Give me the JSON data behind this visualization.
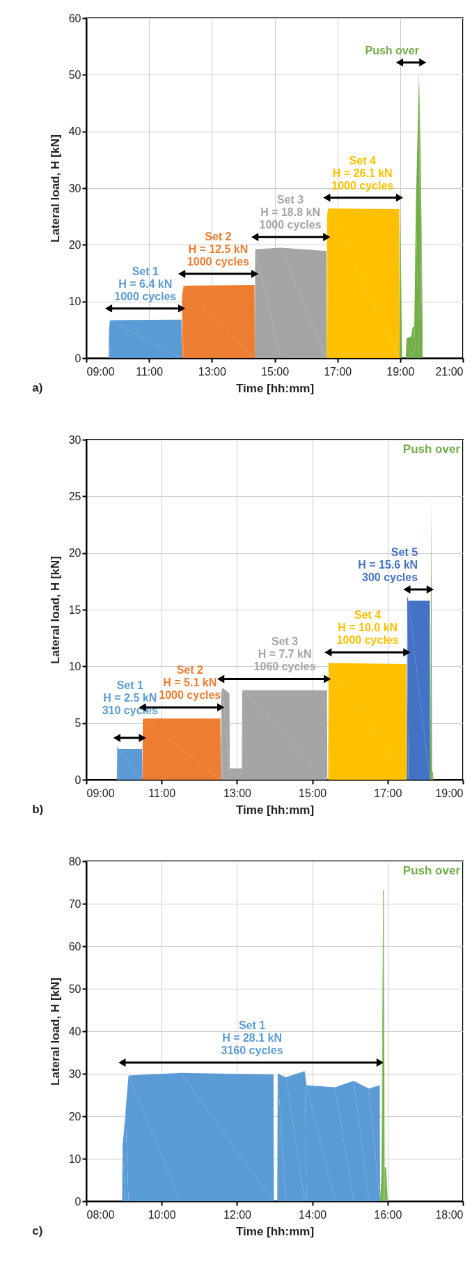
{
  "chart_data": [
    {
      "type": "area",
      "title": "a)",
      "xlabel": "Time [hh:mm]",
      "ylabel": "Lateral load, H [kN]",
      "xlim": [
        9,
        21
      ],
      "ylim": [
        0,
        60
      ],
      "xticks": [
        {
          "value": 9,
          "label": "09:00"
        },
        {
          "value": 11,
          "label": "11:00"
        },
        {
          "value": 13,
          "label": "13:00"
        },
        {
          "value": 15,
          "label": "15:00"
        },
        {
          "value": 17,
          "label": "17:00"
        },
        {
          "value": 19,
          "label": "19:00"
        },
        {
          "value": 21,
          "label": "21:00"
        }
      ],
      "yticks": [
        0,
        10,
        20,
        30,
        40,
        50,
        60
      ],
      "grid": true,
      "series": [
        {
          "color": "#5b9bd5",
          "x": [
            9.71,
            9.72,
            9.75,
            12.03,
            12.04
          ],
          "values": [
            0,
            4.5,
            6.7,
            6.8,
            0
          ]
        },
        {
          "color": "#ed7d31",
          "x": [
            12.04,
            12.05,
            12.1,
            14.36,
            14.37
          ],
          "values": [
            0,
            11,
            12.8,
            12.9,
            0
          ]
        },
        {
          "color": "#a5a5a5",
          "x": [
            14.37,
            14.38,
            15.2,
            16.65,
            16.66
          ],
          "values": [
            0,
            19.2,
            19.5,
            18.9,
            0
          ]
        },
        {
          "color": "#ffc000",
          "x": [
            16.66,
            16.67,
            16.7,
            18.97,
            18.98
          ],
          "values": [
            0,
            25,
            26.4,
            26.3,
            0
          ]
        },
        {
          "color": "#70ad47",
          "x": [
            18.98,
            19.0,
            19.06,
            19.18,
            19.2,
            19.35,
            19.4,
            19.45,
            19.5,
            19.6,
            19.65,
            19.7,
            19.72
          ],
          "values": [
            0,
            28.7,
            0,
            0,
            3.5,
            3.8,
            5.5,
            5.5,
            27,
            50.2,
            37,
            14,
            0
          ]
        }
      ],
      "annotations": [
        {
          "text": "Set 1\nH = 6.4 kN\n1000 cycles",
          "x": 10.88,
          "y": 6.8
        },
        {
          "text": "Set 2\nH = 12.5 kN\n1000 cycles",
          "x": 13.2,
          "y": 12.9
        },
        {
          "text": "Set 3\nH = 18.8 kN\n1000 cycles",
          "x": 15.5,
          "y": 19.4
        },
        {
          "text": "Set 4\nH = 26.1 kN\n1000 cycles",
          "x": 17.8,
          "y": 26.35
        },
        {
          "text": "Push over",
          "x": 19.6,
          "y": 50.2
        }
      ]
    },
    {
      "type": "area",
      "title": "b)",
      "xlabel": "Time [hh:mm]",
      "ylabel": "Lateral load, H [kN]",
      "xlim": [
        9,
        19
      ],
      "ylim": [
        0,
        30
      ],
      "xticks": [
        {
          "value": 9,
          "label": "09:00"
        },
        {
          "value": 11,
          "label": "11:00"
        },
        {
          "value": 13,
          "label": "13:00"
        },
        {
          "value": 15,
          "label": "15:00"
        },
        {
          "value": 17,
          "label": "17:00"
        },
        {
          "value": 19,
          "label": "19:00"
        }
      ],
      "yticks": [
        0,
        5,
        10,
        15,
        20,
        25,
        30
      ],
      "grid": true,
      "series": [
        {
          "color": "#5b9bd5",
          "x": [
            9.81,
            9.82,
            9.86,
            10.48,
            10.49
          ],
          "values": [
            0,
            2.9,
            2.7,
            2.7,
            0
          ]
        },
        {
          "color": "#ed7d31",
          "x": [
            10.49,
            10.5,
            12.56,
            12.57
          ],
          "values": [
            0,
            5.4,
            5.4,
            0
          ]
        },
        {
          "color": "#a5a5a5",
          "x": [
            12.57,
            12.58,
            12.62,
            12.8,
            12.81,
            13.13,
            13.14,
            15.39,
            15.4
          ],
          "values": [
            0,
            7.7,
            8.1,
            7.6,
            1.0,
            1.0,
            7.9,
            7.9,
            0
          ]
        },
        {
          "color": "#ffc000",
          "x": [
            15.42,
            15.43,
            15.46,
            17.5,
            17.51
          ],
          "values": [
            0,
            10.4,
            10.3,
            10.2,
            0
          ]
        },
        {
          "color": "#4472c4",
          "x": [
            17.51,
            17.52,
            17.55,
            18.12,
            18.13
          ],
          "values": [
            0,
            16.2,
            15.8,
            15.8,
            0
          ]
        },
        {
          "color": "#70ad47",
          "x": [
            18.13,
            18.16,
            18.18,
            18.2,
            18.22
          ],
          "values": [
            0,
            24.8,
            0.7,
            0.7,
            0
          ]
        }
      ],
      "annotations": [
        {
          "text": "Set 1\nH = 2.5 kN\n310 cycles",
          "x": 10.16,
          "y": 2.7
        },
        {
          "text": "Set 2\nH = 5.1 kN\n1000 cycles",
          "x": 11.75,
          "y": 5.4
        },
        {
          "text": "Set 3\nH = 7.7 kN\n1060 cycles",
          "x": 14.27,
          "y": 7.9
        },
        {
          "text": "Set 4\nH = 10.0 kN\n1000 cycles",
          "x": 16.47,
          "y": 10.25
        },
        {
          "text": "Set 5\nH = 15.6 kN\n300 cycles",
          "x": 17.8,
          "y": 15.8
        },
        "Push over"
      ]
    },
    {
      "type": "area",
      "title": "c)",
      "xlabel": "Time [hh:mm]",
      "ylabel": "Lateral load, H [kN]",
      "xlim": [
        8,
        18
      ],
      "ylim": [
        0,
        80
      ],
      "xticks": [
        {
          "value": 8,
          "label": "08:00"
        },
        {
          "value": 10,
          "label": "10:00"
        },
        {
          "value": 12,
          "label": "12:00"
        },
        {
          "value": 14,
          "label": "14:00"
        },
        {
          "value": 16,
          "label": "16:00"
        },
        {
          "value": 18,
          "label": "18:00"
        }
      ],
      "yticks": [
        0,
        10,
        20,
        30,
        40,
        50,
        60,
        70,
        80
      ],
      "grid": true,
      "series": [
        {
          "color": "#5b9bd5",
          "x": [
            8.95,
            8.96,
            9.04,
            9.12,
            10.5,
            12.97,
            12.98,
            13.07,
            13.08,
            13.3,
            13.8,
            13.85,
            14.6,
            15.1,
            15.5,
            15.79,
            15.8
          ],
          "values": [
            0,
            12.6,
            21,
            29.6,
            30.2,
            29.8,
            0,
            0,
            30,
            29.2,
            30.6,
            27.3,
            26.8,
            28.3,
            26.5,
            27.3,
            0
          ]
        },
        {
          "color": "#70ad47",
          "x": [
            15.8,
            15.84,
            15.86,
            15.88,
            15.9,
            15.92,
            15.96,
            16.0
          ],
          "values": [
            0,
            8,
            42,
            73.5,
            73,
            8,
            8,
            0
          ]
        }
      ],
      "annotations": [
        {
          "text": "Set 1\nH = 28.1 kN\n3160 cycles",
          "x": 12.4,
          "y": 30.0
        },
        "Push over"
      ]
    }
  ]
}
